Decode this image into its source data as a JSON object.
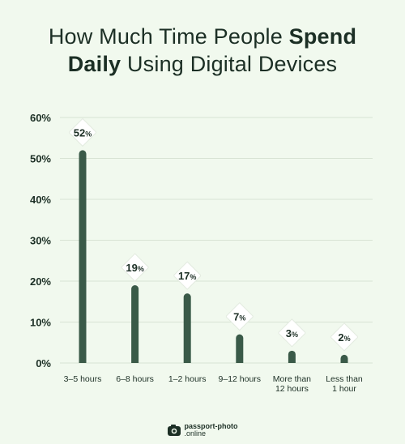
{
  "title": {
    "part1": "How Much Time People ",
    "bold1": "Spend",
    "bold2": "Daily",
    "part2": " Using Digital Devices"
  },
  "colors": {
    "bar": "#3a5a48",
    "background": "#f1f9ee",
    "grid": "#d8e3d4",
    "text": "#1c2f25"
  },
  "chart_data": {
    "type": "bar",
    "title": "How Much Time People Spend Daily Using Digital Devices",
    "categories": [
      [
        "3–5 hours"
      ],
      [
        "6–8 hours"
      ],
      [
        "1–2 hours"
      ],
      [
        "9–12 hours"
      ],
      [
        "More than",
        "12 hours"
      ],
      [
        "Less than",
        "1 hour"
      ]
    ],
    "values": [
      52,
      19,
      17,
      7,
      3,
      2
    ],
    "value_suffix": "%",
    "ylim": [
      0,
      60
    ],
    "yticks": [
      0,
      10,
      20,
      30,
      40,
      50,
      60
    ],
    "ytick_labels": [
      "0%",
      "10%",
      "20%",
      "30%",
      "40%",
      "50%",
      "60%"
    ],
    "grid": true,
    "xlabel": "",
    "ylabel": ""
  },
  "footer": {
    "logo_icon": "camera-icon",
    "logo_line1": "passport-photo",
    "logo_line2": ".online"
  }
}
